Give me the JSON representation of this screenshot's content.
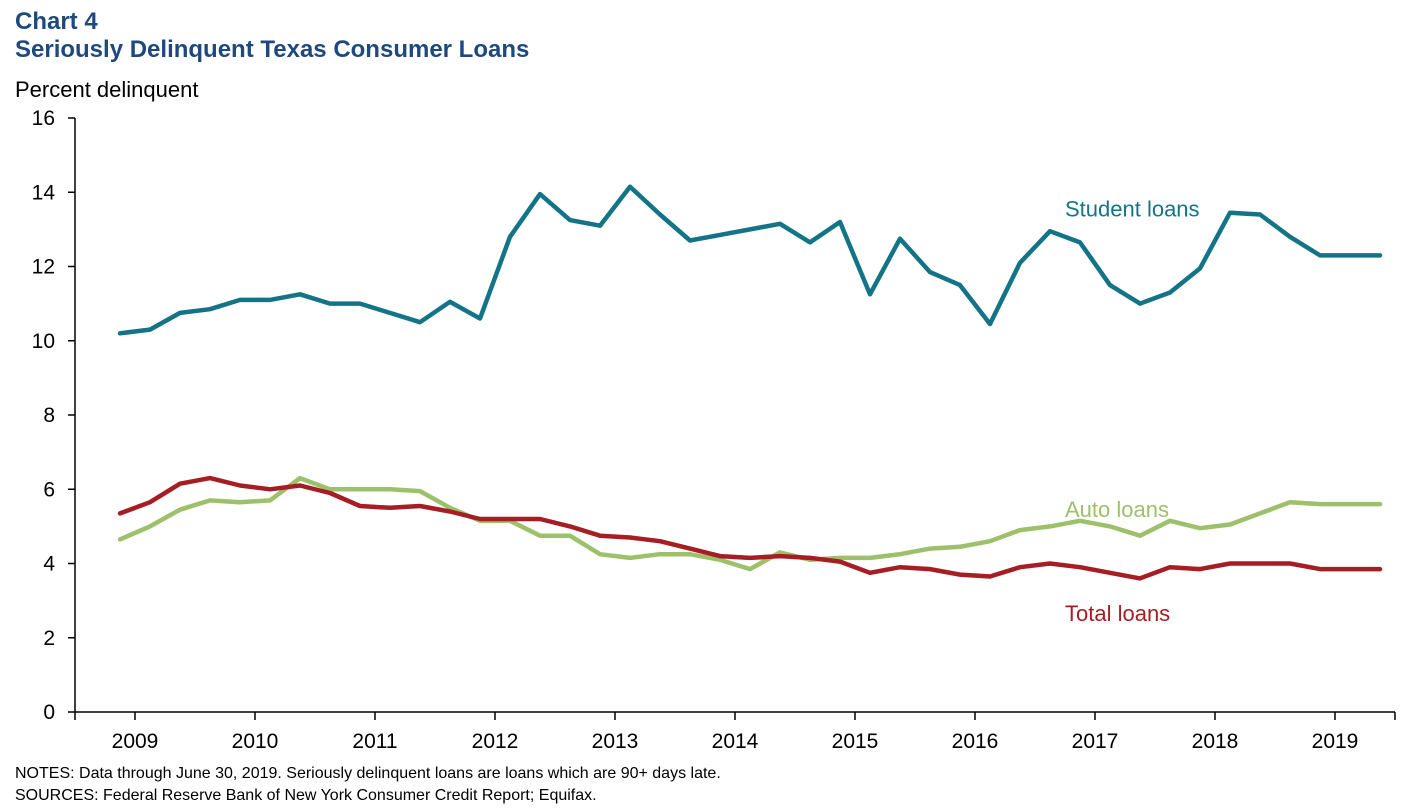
{
  "chart_number": "Chart 4",
  "notes": "NOTES: Data through June 30, 2019. Seriously delinquent loans are loans which are 90+ days late.",
  "sources": "SOURCES: Federal Reserve Bank of New York Consumer Credit Report; Equifax.",
  "colors": {
    "title": "#1f497d",
    "student": "#137487",
    "auto": "#9dc06b",
    "total": "#a51e24"
  },
  "chart_data": {
    "type": "line",
    "title": "Seriously Delinquent Texas Consumer Loans",
    "ylabel": "Percent delinquent",
    "ylim": [
      0,
      16
    ],
    "yticks": [
      0,
      2,
      4,
      6,
      8,
      10,
      12,
      14,
      16
    ],
    "xlim": [
      2008.5,
      2019.5
    ],
    "xtick_labels": [
      "2009",
      "2010",
      "2011",
      "2012",
      "2013",
      "2014",
      "2015",
      "2016",
      "2017",
      "2018",
      "2019"
    ],
    "x": [
      2008.875,
      2009.125,
      2009.375,
      2009.625,
      2009.875,
      2010.125,
      2010.375,
      2010.625,
      2010.875,
      2011.125,
      2011.375,
      2011.625,
      2011.875,
      2012.125,
      2012.375,
      2012.625,
      2012.875,
      2013.125,
      2013.375,
      2013.625,
      2013.875,
      2014.125,
      2014.375,
      2014.625,
      2014.875,
      2015.125,
      2015.375,
      2015.625,
      2015.875,
      2016.125,
      2016.375,
      2016.625,
      2016.875,
      2017.125,
      2017.375,
      2017.625,
      2017.875,
      2018.125,
      2018.375,
      2018.625,
      2018.875,
      2019.125,
      2019.375
    ],
    "series": [
      {
        "name": "Student loans",
        "values": [
          10.2,
          10.3,
          10.75,
          10.85,
          11.1,
          11.1,
          11.25,
          11.0,
          11.0,
          10.75,
          10.5,
          11.05,
          10.6,
          12.8,
          13.95,
          13.25,
          13.1,
          14.15,
          13.4,
          12.7,
          12.85,
          13.0,
          13.15,
          12.65,
          13.2,
          11.25,
          12.75,
          11.85,
          11.5,
          10.45,
          12.1,
          12.95,
          12.65,
          11.5,
          11.0,
          11.3,
          11.95,
          13.45,
          13.4,
          12.8,
          12.3,
          12.3,
          12.3
        ]
      },
      {
        "name": "Auto loans",
        "values": [
          4.65,
          5.0,
          5.45,
          5.7,
          5.65,
          5.7,
          6.3,
          6.0,
          6.0,
          6.0,
          5.95,
          5.5,
          5.15,
          5.15,
          4.75,
          4.75,
          4.25,
          4.15,
          4.25,
          4.25,
          4.1,
          3.85,
          4.3,
          4.1,
          4.15,
          4.15,
          4.25,
          4.4,
          4.45,
          4.6,
          4.9,
          5.0,
          5.15,
          5.0,
          4.75,
          5.15,
          4.95,
          5.05,
          5.35,
          5.65,
          5.6,
          5.6,
          5.6
        ]
      },
      {
        "name": "Total loans",
        "values": [
          5.35,
          5.65,
          6.15,
          6.3,
          6.1,
          6.0,
          6.1,
          5.9,
          5.55,
          5.5,
          5.55,
          5.4,
          5.2,
          5.2,
          5.2,
          5.0,
          4.75,
          4.7,
          4.6,
          4.4,
          4.2,
          4.15,
          4.2,
          4.15,
          4.05,
          3.75,
          3.9,
          3.85,
          3.7,
          3.65,
          3.9,
          4.0,
          3.9,
          3.75,
          3.6,
          3.9,
          3.85,
          4.0,
          4.0,
          4.0,
          3.85,
          3.85,
          3.85
        ]
      }
    ]
  }
}
